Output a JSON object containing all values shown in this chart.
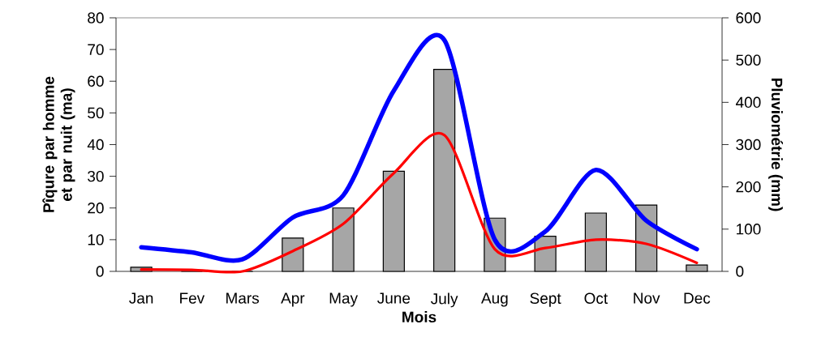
{
  "chart_data": {
    "type": "bar",
    "xlabel": "Mois",
    "ylabel": "Pîqure par homme et par nuit (ma)",
    "y2label": "Pluviométrie (mm)",
    "categories": [
      "Jan",
      "Fev",
      "Mars",
      "Apr",
      "May",
      "June",
      "July",
      "Aug",
      "Sept",
      "Oct",
      "Nov",
      "Dec"
    ],
    "series": [
      {
        "axis": "y2",
        "color": "#a6a6a6",
        "values": [
          10,
          0,
          0,
          79,
          150,
          237,
          478,
          126,
          83,
          138,
          157,
          15
        ]
      },
      {
        "type": "line",
        "color": "#0000ff",
        "values": [
          7.6,
          6,
          3.8,
          17,
          24,
          57,
          73,
          10,
          12.6,
          32,
          16,
          7
        ]
      },
      {
        "type": "line",
        "color": "#ff0000",
        "values": [
          0.6,
          0.5,
          0,
          6.4,
          15,
          31,
          43,
          7,
          7.4,
          10,
          8.7,
          2.7
        ]
      }
    ],
    "ylim": [
      0,
      80
    ],
    "yticks": [
      0,
      10,
      20,
      30,
      40,
      50,
      60,
      70,
      80
    ],
    "y2lim": [
      0,
      600
    ],
    "y2ticks": [
      0,
      100,
      200,
      300,
      400,
      500,
      600
    ],
    "grid": false,
    "marker": "none",
    "line_style": "solid"
  }
}
